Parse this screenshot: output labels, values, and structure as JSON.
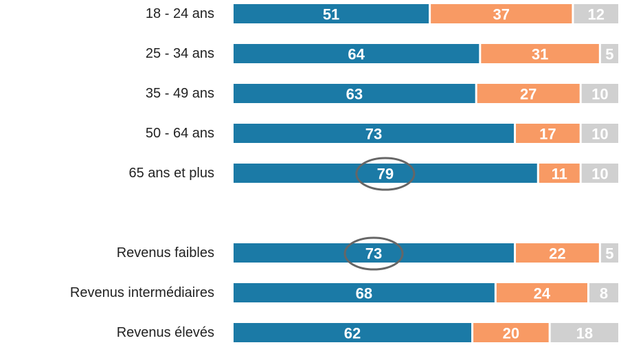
{
  "chart_data": {
    "type": "stacked-bar-horizontal",
    "categories": [
      "18 - 24 ans",
      "25 - 34 ans",
      "35 - 49 ans",
      "50 - 64 ans",
      "65 ans et plus",
      null,
      "Revenus faibles",
      "Revenus intermédiaires",
      "Revenus élevés"
    ],
    "series": [
      {
        "color": "#1b7aa6",
        "values": [
          51,
          64,
          63,
          73,
          79,
          null,
          73,
          68,
          62
        ]
      },
      {
        "color": "#f89a64",
        "values": [
          37,
          31,
          27,
          17,
          11,
          null,
          22,
          24,
          20
        ]
      },
      {
        "color": "#d0d0d0",
        "values": [
          12,
          5,
          10,
          10,
          10,
          null,
          5,
          8,
          18
        ]
      }
    ],
    "xlim": [
      0,
      100
    ]
  }
}
